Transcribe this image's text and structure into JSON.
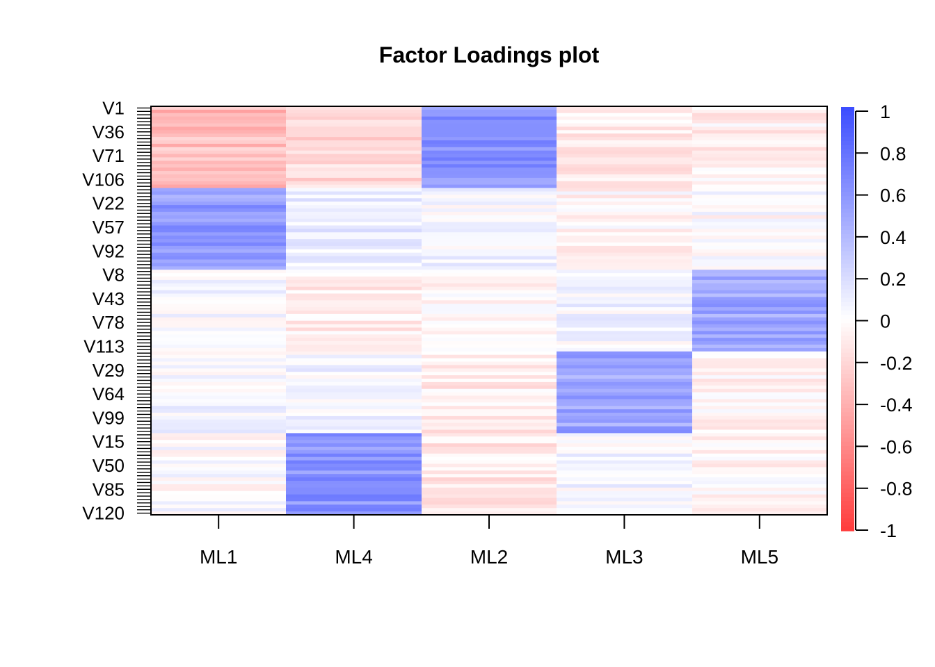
{
  "chart_data": {
    "type": "heatmap",
    "title": "Factor Loadings plot",
    "columns": [
      "ML1",
      "ML4",
      "ML2",
      "ML3",
      "ML5"
    ],
    "row_labels_shown": [
      "V1",
      "V36",
      "V71",
      "V106",
      "V22",
      "V57",
      "V92",
      "V8",
      "V43",
      "V78",
      "V113",
      "V29",
      "V64",
      "V99",
      "V15",
      "V50",
      "V85",
      "V120"
    ],
    "n_rows": 120,
    "value_range": [
      -1,
      1
    ],
    "colorbar_ticks": [
      "1",
      "0.8",
      "0.6",
      "0.4",
      "0.2",
      "0",
      "-0.2",
      "-0.4",
      "-0.6",
      "-0.8",
      "-1"
    ],
    "colors": {
      "negative": "#ff3b3b",
      "zero": "#ffffff",
      "positive": "#3b4cff"
    },
    "row_groups": [
      {
        "rows": [
          1,
          24
        ],
        "mean_loadings": [
          -0.35,
          -0.2,
          0.6,
          -0.1,
          -0.08
        ]
      },
      {
        "rows": [
          25,
          48
        ],
        "mean_loadings": [
          0.55,
          0.1,
          0.05,
          -0.05,
          0.0
        ]
      },
      {
        "rows": [
          49,
          72
        ],
        "mean_loadings": [
          0.05,
          -0.1,
          -0.05,
          0.05,
          0.5
        ]
      },
      {
        "rows": [
          73,
          96
        ],
        "mean_loadings": [
          0.05,
          0.05,
          -0.1,
          0.5,
          -0.05
        ]
      },
      {
        "rows": [
          97,
          120
        ],
        "mean_loadings": [
          0.0,
          0.6,
          -0.12,
          0.05,
          -0.05
        ]
      }
    ]
  }
}
